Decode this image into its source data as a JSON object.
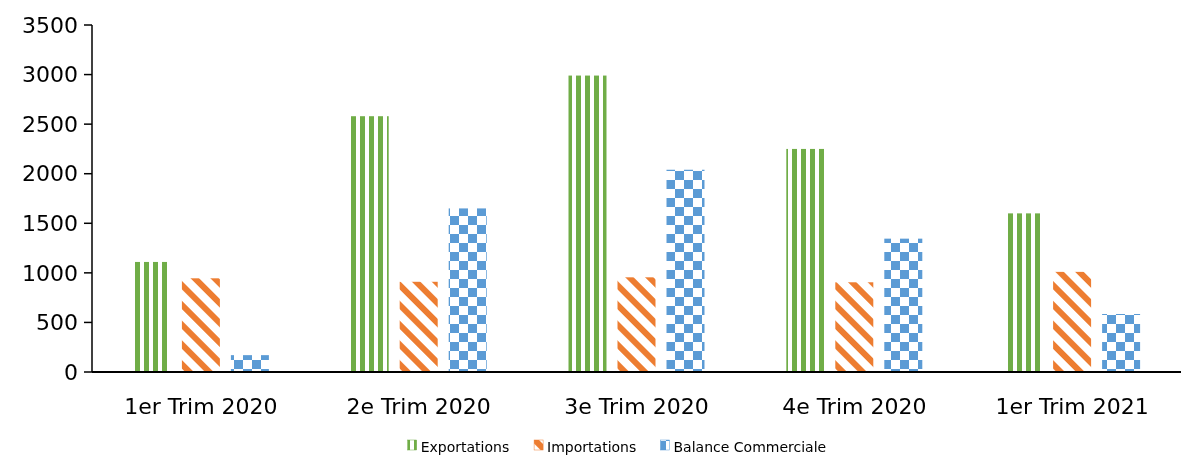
{
  "chart_data": {
    "type": "bar",
    "categories": [
      "1er Trim 2020",
      "2e Trim 2020",
      "3e Trim 2020",
      "4e Trim 2020",
      "1er Trim 2021"
    ],
    "series": [
      {
        "name": "Exportations",
        "color": "#70ad47",
        "values": [
          1110,
          2580,
          2990,
          2250,
          1600
        ]
      },
      {
        "name": "Importations",
        "color": "#ed7d31",
        "values": [
          945,
          910,
          955,
          905,
          1010
        ]
      },
      {
        "name": "Balance Commerciale",
        "color": "#5b9bd5",
        "values": [
          170,
          1650,
          2040,
          1345,
          585
        ]
      }
    ],
    "ylim": [
      0,
      3500
    ],
    "yticks": [
      0,
      500,
      1000,
      1500,
      2000,
      2500,
      3000,
      3500
    ],
    "grid": false,
    "legend": "bottom"
  }
}
